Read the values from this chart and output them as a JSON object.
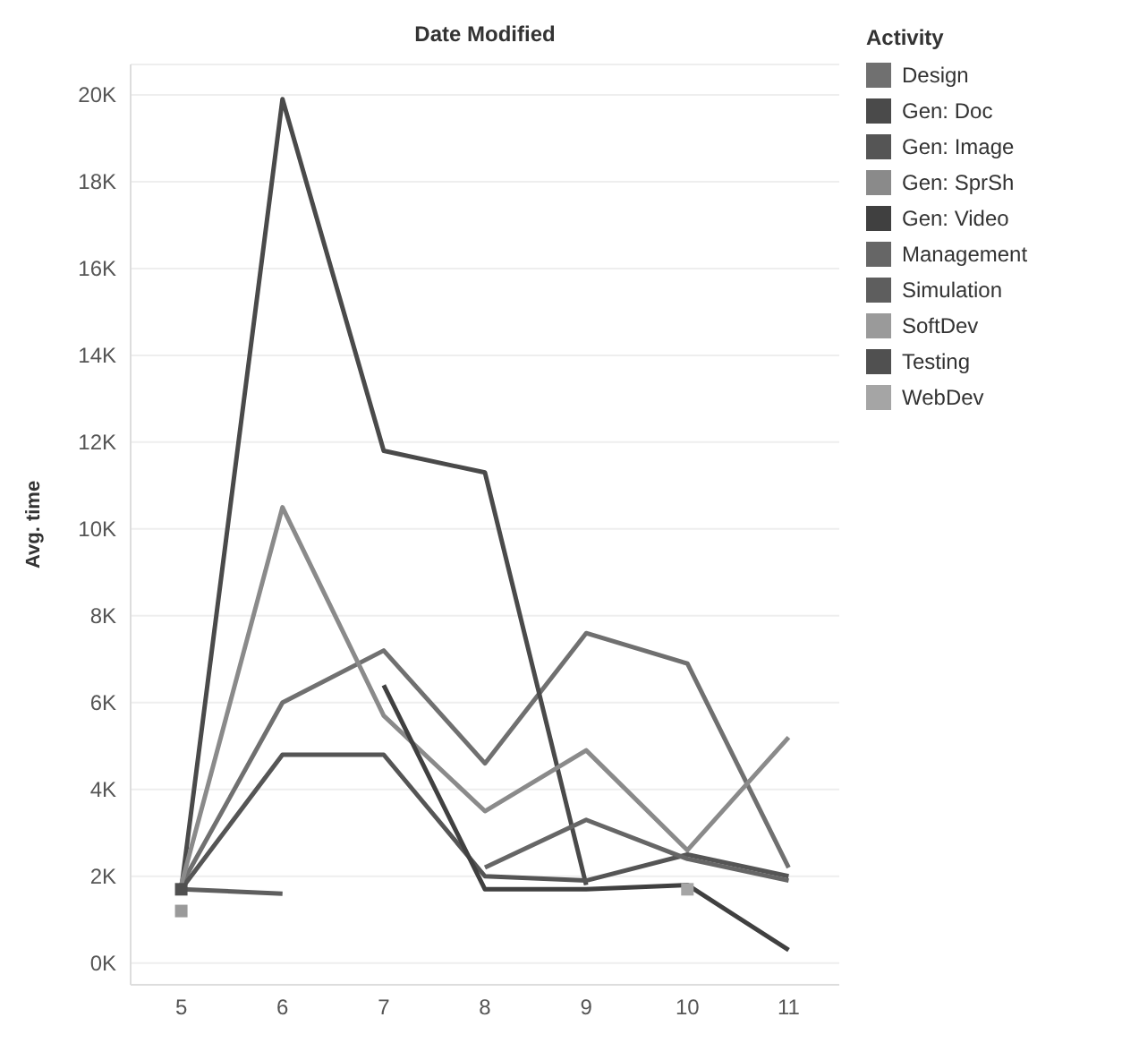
{
  "chart_data": {
    "type": "line",
    "title": "Date Modified",
    "ylabel": "Avg. time",
    "legend_title": "Activity",
    "legend": "right",
    "grid": "y",
    "x": [
      5,
      6,
      7,
      8,
      9,
      10,
      11
    ],
    "xlim": [
      4.5,
      11.5
    ],
    "xticks": [
      5,
      6,
      7,
      8,
      9,
      10,
      11
    ],
    "ylim": [
      -0.5,
      20.7
    ],
    "yticks": [
      {
        "value": 0,
        "label": "0K"
      },
      {
        "value": 2,
        "label": "2K"
      },
      {
        "value": 4,
        "label": "4K"
      },
      {
        "value": 6,
        "label": "6K"
      },
      {
        "value": 8,
        "label": "8K"
      },
      {
        "value": 10,
        "label": "10K"
      },
      {
        "value": 12,
        "label": "12K"
      },
      {
        "value": 14,
        "label": "14K"
      },
      {
        "value": 16,
        "label": "16K"
      },
      {
        "value": 18,
        "label": "18K"
      },
      {
        "value": 20,
        "label": "20K"
      }
    ],
    "series": [
      {
        "name": "Design",
        "color": "#707070",
        "values": [
          1.8,
          6.0,
          7.2,
          4.6,
          7.6,
          6.9,
          2.2
        ]
      },
      {
        "name": "Gen: Doc",
        "color": "#4a4a4a",
        "values": [
          1.7,
          19.9,
          11.8,
          11.3,
          1.8,
          null,
          null
        ]
      },
      {
        "name": "Gen: Image",
        "color": "#555555",
        "values": [
          1.7,
          4.8,
          4.8,
          2.0,
          1.9,
          2.5,
          2.0
        ]
      },
      {
        "name": "Gen: SprSh",
        "color": "#8a8a8a",
        "values": [
          1.8,
          10.5,
          5.7,
          3.5,
          4.9,
          2.6,
          5.2
        ]
      },
      {
        "name": "Gen: Video",
        "color": "#404040",
        "values": [
          null,
          null,
          6.4,
          1.7,
          1.7,
          1.8,
          0.3
        ]
      },
      {
        "name": "Management",
        "color": "#666666",
        "values": [
          null,
          null,
          null,
          2.2,
          3.3,
          2.4,
          1.9
        ]
      },
      {
        "name": "Simulation",
        "color": "#5e5e5e",
        "values": [
          1.7,
          1.6,
          null,
          null,
          null,
          null,
          null
        ]
      },
      {
        "name": "SoftDev",
        "color": "#9a9a9a",
        "marker": "square",
        "values": [
          1.2,
          null,
          null,
          null,
          null,
          null,
          null
        ]
      },
      {
        "name": "Testing",
        "color": "#505050",
        "marker": "square",
        "values": [
          1.7,
          null,
          null,
          null,
          null,
          null,
          null
        ]
      },
      {
        "name": "WebDev",
        "color": "#a5a5a5",
        "marker": "square",
        "values": [
          null,
          null,
          null,
          null,
          null,
          1.7,
          null
        ]
      }
    ]
  }
}
